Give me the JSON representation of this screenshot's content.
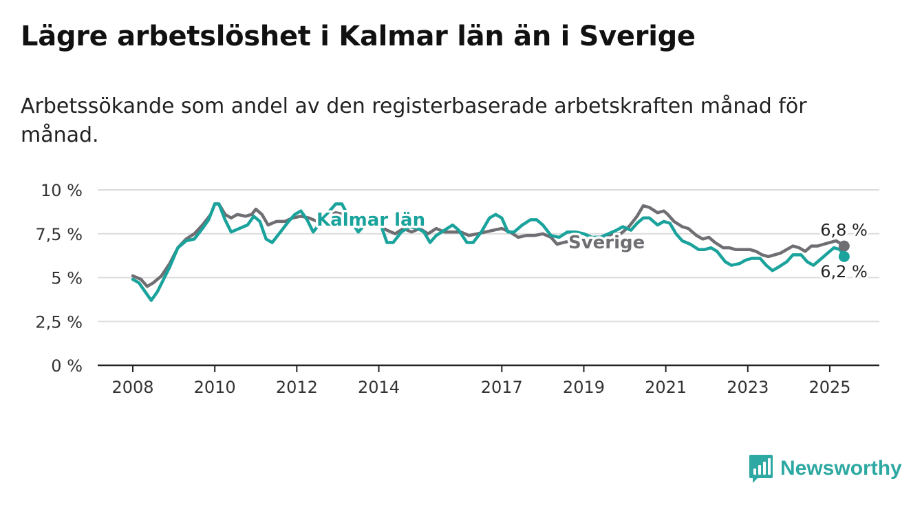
{
  "header": {
    "title": "Lägre arbetslöshet i Kalmar län än i Sverige",
    "subtitle": "Arbetssökande som andel av den registerbaserade arbetskraften månad för månad."
  },
  "brand": {
    "name": "Newsworthy",
    "icon": "bar-chart-logo-icon",
    "color": "#2ea8a2"
  },
  "chart_data": {
    "type": "line",
    "title": "Lägre arbetslöshet i Kalmar län än i Sverige",
    "xlabel": "",
    "ylabel": "",
    "ylim": [
      0,
      10
    ],
    "xlim": [
      2008.0,
      2025.4
    ],
    "grid": true,
    "legend": "direct labels",
    "y_ticks": [
      {
        "value": 0,
        "label": "0 %"
      },
      {
        "value": 2.5,
        "label": "2,5 %"
      },
      {
        "value": 5,
        "label": "5 %"
      },
      {
        "value": 7.5,
        "label": "7,5 %"
      },
      {
        "value": 10,
        "label": "10 %"
      }
    ],
    "x_ticks": [
      {
        "value": 2008,
        "label": "2008"
      },
      {
        "value": 2010,
        "label": "2010"
      },
      {
        "value": 2012,
        "label": "2012"
      },
      {
        "value": 2014,
        "label": "2014"
      },
      {
        "value": 2017,
        "label": "2017"
      },
      {
        "value": 2019,
        "label": "2019"
      },
      {
        "value": 2021,
        "label": "2021"
      },
      {
        "value": 2023,
        "label": "2023"
      },
      {
        "value": 2025,
        "label": "2025"
      }
    ],
    "series": [
      {
        "name": "Sverige",
        "color": "#6e6e73",
        "end_label": "6,8 %",
        "points": [
          [
            2008.0,
            5.1
          ],
          [
            2008.2,
            4.9
          ],
          [
            2008.35,
            4.5
          ],
          [
            2008.5,
            4.7
          ],
          [
            2008.7,
            5.1
          ],
          [
            2008.9,
            5.8
          ],
          [
            2009.1,
            6.7
          ],
          [
            2009.3,
            7.2
          ],
          [
            2009.5,
            7.5
          ],
          [
            2009.7,
            8.0
          ],
          [
            2009.9,
            8.6
          ],
          [
            2010.0,
            9.2
          ],
          [
            2010.1,
            9.2
          ],
          [
            2010.25,
            8.6
          ],
          [
            2010.4,
            8.4
          ],
          [
            2010.55,
            8.6
          ],
          [
            2010.75,
            8.5
          ],
          [
            2010.9,
            8.6
          ],
          [
            2011.0,
            8.9
          ],
          [
            2011.15,
            8.6
          ],
          [
            2011.3,
            8.0
          ],
          [
            2011.5,
            8.2
          ],
          [
            2011.7,
            8.2
          ],
          [
            2011.9,
            8.4
          ],
          [
            2012.1,
            8.5
          ],
          [
            2012.3,
            8.4
          ],
          [
            2012.5,
            8.2
          ],
          [
            2012.75,
            8.5
          ],
          [
            2012.95,
            8.7
          ],
          [
            2013.15,
            8.6
          ],
          [
            2013.4,
            8.3
          ],
          [
            2013.6,
            8.0
          ],
          [
            2013.8,
            8.2
          ],
          [
            2014.0,
            8.0
          ],
          [
            2014.2,
            7.7
          ],
          [
            2014.4,
            7.5
          ],
          [
            2014.6,
            7.8
          ],
          [
            2014.8,
            7.6
          ],
          [
            2015.0,
            7.8
          ],
          [
            2015.2,
            7.5
          ],
          [
            2015.4,
            7.8
          ],
          [
            2015.6,
            7.6
          ],
          [
            2015.8,
            7.6
          ],
          [
            2016.0,
            7.6
          ],
          [
            2016.2,
            7.4
          ],
          [
            2016.4,
            7.5
          ],
          [
            2016.6,
            7.6
          ],
          [
            2016.8,
            7.7
          ],
          [
            2017.0,
            7.8
          ],
          [
            2017.2,
            7.6
          ],
          [
            2017.4,
            7.3
          ],
          [
            2017.6,
            7.4
          ],
          [
            2017.8,
            7.4
          ],
          [
            2018.0,
            7.5
          ],
          [
            2018.2,
            7.3
          ],
          [
            2018.35,
            6.9
          ],
          [
            2018.5,
            7.0
          ],
          [
            2018.7,
            7.1
          ],
          [
            2018.9,
            7.2
          ],
          [
            2019.1,
            7.2
          ],
          [
            2019.3,
            7.3
          ],
          [
            2019.5,
            7.3
          ],
          [
            2019.7,
            7.5
          ],
          [
            2019.9,
            7.5
          ],
          [
            2020.1,
            7.9
          ],
          [
            2020.3,
            8.5
          ],
          [
            2020.45,
            9.1
          ],
          [
            2020.6,
            9.0
          ],
          [
            2020.8,
            8.7
          ],
          [
            2020.95,
            8.8
          ],
          [
            2021.05,
            8.6
          ],
          [
            2021.2,
            8.2
          ],
          [
            2021.4,
            7.9
          ],
          [
            2021.55,
            7.8
          ],
          [
            2021.75,
            7.4
          ],
          [
            2021.9,
            7.2
          ],
          [
            2022.05,
            7.3
          ],
          [
            2022.2,
            7.0
          ],
          [
            2022.4,
            6.7
          ],
          [
            2022.55,
            6.7
          ],
          [
            2022.7,
            6.6
          ],
          [
            2022.9,
            6.6
          ],
          [
            2023.05,
            6.6
          ],
          [
            2023.2,
            6.5
          ],
          [
            2023.35,
            6.3
          ],
          [
            2023.5,
            6.2
          ],
          [
            2023.65,
            6.3
          ],
          [
            2023.8,
            6.4
          ],
          [
            2023.95,
            6.6
          ],
          [
            2024.1,
            6.8
          ],
          [
            2024.25,
            6.7
          ],
          [
            2024.4,
            6.5
          ],
          [
            2024.55,
            6.8
          ],
          [
            2024.7,
            6.8
          ],
          [
            2024.85,
            6.9
          ],
          [
            2025.0,
            7.0
          ],
          [
            2025.15,
            7.1
          ],
          [
            2025.3,
            6.9
          ],
          [
            2025.35,
            6.8
          ]
        ]
      },
      {
        "name": "Kalmar län",
        "color": "#1aa39c",
        "end_label": "6,2 %",
        "points": [
          [
            2008.0,
            4.9
          ],
          [
            2008.15,
            4.7
          ],
          [
            2008.3,
            4.2
          ],
          [
            2008.45,
            3.7
          ],
          [
            2008.6,
            4.2
          ],
          [
            2008.75,
            4.9
          ],
          [
            2008.9,
            5.6
          ],
          [
            2009.1,
            6.7
          ],
          [
            2009.3,
            7.1
          ],
          [
            2009.5,
            7.2
          ],
          [
            2009.7,
            7.8
          ],
          [
            2009.85,
            8.3
          ],
          [
            2010.0,
            9.2
          ],
          [
            2010.1,
            9.2
          ],
          [
            2010.25,
            8.3
          ],
          [
            2010.4,
            7.6
          ],
          [
            2010.6,
            7.8
          ],
          [
            2010.8,
            8.0
          ],
          [
            2010.95,
            8.5
          ],
          [
            2011.1,
            8.2
          ],
          [
            2011.25,
            7.2
          ],
          [
            2011.4,
            7.0
          ],
          [
            2011.6,
            7.6
          ],
          [
            2011.8,
            8.2
          ],
          [
            2011.95,
            8.6
          ],
          [
            2012.1,
            8.8
          ],
          [
            2012.25,
            8.3
          ],
          [
            2012.4,
            7.6
          ],
          [
            2012.6,
            8.2
          ],
          [
            2012.8,
            8.8
          ],
          [
            2012.95,
            9.2
          ],
          [
            2013.1,
            9.2
          ],
          [
            2013.3,
            8.3
          ],
          [
            2013.5,
            7.6
          ],
          [
            2013.65,
            8.0
          ],
          [
            2013.85,
            8.4
          ],
          [
            2014.05,
            8.0
          ],
          [
            2014.2,
            7.0
          ],
          [
            2014.35,
            7.0
          ],
          [
            2014.55,
            7.6
          ],
          [
            2014.75,
            7.9
          ],
          [
            2014.95,
            7.8
          ],
          [
            2015.1,
            7.6
          ],
          [
            2015.25,
            7.0
          ],
          [
            2015.4,
            7.4
          ],
          [
            2015.6,
            7.7
          ],
          [
            2015.8,
            8.0
          ],
          [
            2015.95,
            7.7
          ],
          [
            2016.15,
            7.0
          ],
          [
            2016.3,
            7.0
          ],
          [
            2016.5,
            7.6
          ],
          [
            2016.7,
            8.4
          ],
          [
            2016.85,
            8.6
          ],
          [
            2017.0,
            8.4
          ],
          [
            2017.15,
            7.6
          ],
          [
            2017.3,
            7.6
          ],
          [
            2017.5,
            8.0
          ],
          [
            2017.7,
            8.3
          ],
          [
            2017.85,
            8.3
          ],
          [
            2018.0,
            8.0
          ],
          [
            2018.2,
            7.4
          ],
          [
            2018.4,
            7.3
          ],
          [
            2018.6,
            7.6
          ],
          [
            2018.8,
            7.6
          ],
          [
            2019.0,
            7.5
          ],
          [
            2019.2,
            7.3
          ],
          [
            2019.4,
            7.3
          ],
          [
            2019.6,
            7.5
          ],
          [
            2019.8,
            7.7
          ],
          [
            2019.95,
            7.9
          ],
          [
            2020.15,
            7.7
          ],
          [
            2020.3,
            8.1
          ],
          [
            2020.45,
            8.4
          ],
          [
            2020.6,
            8.4
          ],
          [
            2020.8,
            8.0
          ],
          [
            2020.95,
            8.2
          ],
          [
            2021.1,
            8.1
          ],
          [
            2021.25,
            7.5
          ],
          [
            2021.4,
            7.1
          ],
          [
            2021.6,
            6.9
          ],
          [
            2021.8,
            6.6
          ],
          [
            2021.95,
            6.6
          ],
          [
            2022.1,
            6.7
          ],
          [
            2022.25,
            6.5
          ],
          [
            2022.45,
            5.9
          ],
          [
            2022.6,
            5.7
          ],
          [
            2022.8,
            5.8
          ],
          [
            2022.95,
            6.0
          ],
          [
            2023.1,
            6.1
          ],
          [
            2023.3,
            6.1
          ],
          [
            2023.45,
            5.7
          ],
          [
            2023.6,
            5.4
          ],
          [
            2023.75,
            5.6
          ],
          [
            2023.95,
            5.9
          ],
          [
            2024.1,
            6.3
          ],
          [
            2024.3,
            6.3
          ],
          [
            2024.45,
            5.9
          ],
          [
            2024.6,
            5.7
          ],
          [
            2024.8,
            6.1
          ],
          [
            2024.95,
            6.4
          ],
          [
            2025.1,
            6.7
          ],
          [
            2025.25,
            6.6
          ],
          [
            2025.35,
            6.2
          ]
        ]
      }
    ]
  }
}
